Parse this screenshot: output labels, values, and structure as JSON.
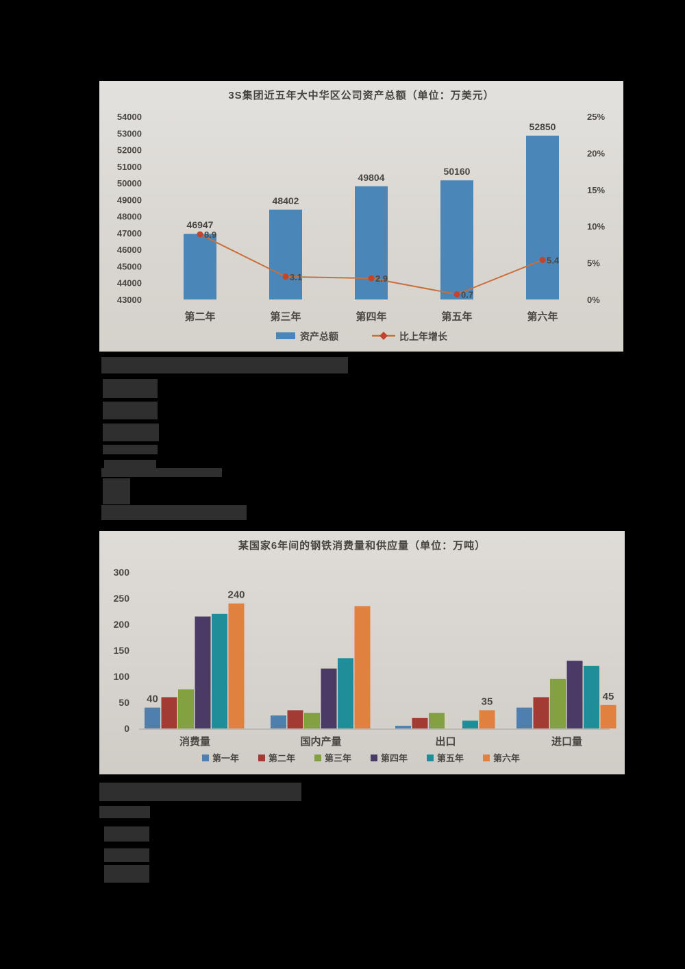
{
  "page": {
    "background": "#000000",
    "panel_background": "#dbd8d3"
  },
  "chart_data": [
    {
      "type": "bar-line-combo",
      "title": "3S集团近五年大中华区公司资产总额（单位：万美元）",
      "categories": [
        "第二年",
        "第三年",
        "第四年",
        "第五年",
        "第六年"
      ],
      "bar_series": {
        "name": "资产总额",
        "values": [
          46947,
          48402,
          49804,
          50160,
          52850
        ],
        "labels": [
          "46947",
          "48402",
          "49804",
          "50160",
          "52850"
        ],
        "color": "#4a86b8"
      },
      "line_series": {
        "name": "比上年增长",
        "values": [
          8.9,
          3.1,
          2.9,
          0.7,
          5.4
        ],
        "labels": [
          "8.9",
          "3.1",
          "2.9",
          "0.7",
          "5.4"
        ],
        "color": "#c96f3d",
        "marker_color": "#c0452e"
      },
      "left_axis": {
        "min": 43000,
        "max": 54000,
        "step": 1000
      },
      "right_axis": {
        "min": 0,
        "max": 25,
        "step": 5,
        "suffix": "%"
      },
      "legend_position": "bottom",
      "grid": false,
      "text_color": "#4a4742"
    },
    {
      "type": "grouped-bar",
      "title": "某国家6年间的钢铁消费量和供应量（单位：万吨）",
      "categories": [
        "消费量",
        "国内产量",
        "出口",
        "进口量"
      ],
      "series": [
        {
          "name": "第一年",
          "color": "#4e7fae",
          "values": [
            40,
            25,
            5,
            40
          ]
        },
        {
          "name": "第二年",
          "color": "#a33b35",
          "values": [
            60,
            35,
            20,
            60
          ]
        },
        {
          "name": "第三年",
          "color": "#84a141",
          "values": [
            75,
            30,
            30,
            95
          ]
        },
        {
          "name": "第四年",
          "color": "#4a3a66",
          "values": [
            215,
            115,
            0,
            130
          ]
        },
        {
          "name": "第五年",
          "color": "#1f8e98",
          "values": [
            220,
            135,
            15,
            120
          ]
        },
        {
          "name": "第六年",
          "color": "#e0813f",
          "values": [
            240,
            235,
            35,
            45
          ]
        }
      ],
      "y_axis": {
        "min": 0,
        "max": 300,
        "step": 50
      },
      "data_labels": [
        {
          "category": 0,
          "series": 0,
          "text": "40"
        },
        {
          "category": 0,
          "series": 5,
          "text": "240"
        },
        {
          "category": 2,
          "series": 5,
          "text": "35"
        },
        {
          "category": 3,
          "series": 5,
          "text": "45"
        }
      ],
      "legend_position": "bottom",
      "grid": false,
      "text_color": "#4a4742"
    }
  ]
}
